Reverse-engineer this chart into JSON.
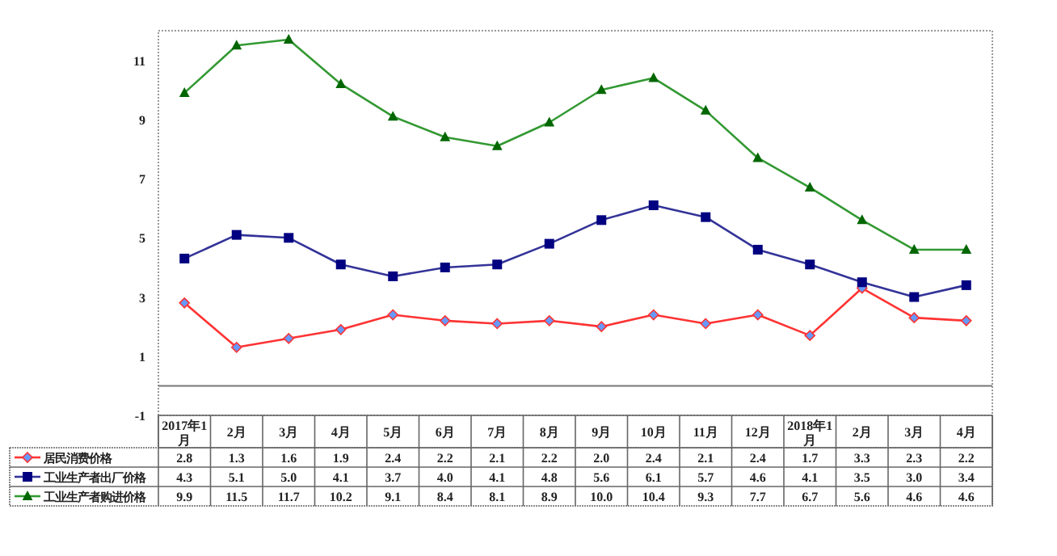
{
  "chart_data": {
    "type": "line",
    "categories": [
      "2017年1月",
      "2月",
      "3月",
      "4月",
      "5月",
      "6月",
      "7月",
      "8月",
      "9月",
      "10月",
      "11月",
      "12月",
      "2018年1月",
      "2月",
      "3月",
      "4月"
    ],
    "series": [
      {
        "name": "居民消费价格",
        "color": "#ff3333",
        "marker": "diamond",
        "values": [
          2.8,
          1.3,
          1.6,
          1.9,
          2.4,
          2.2,
          2.1,
          2.2,
          2.0,
          2.4,
          2.1,
          2.4,
          1.7,
          3.3,
          2.3,
          2.2
        ],
        "value_labels": [
          "2.8",
          "1.3",
          "1.6",
          "1.9",
          "2.4",
          "2.2",
          "2.1",
          "2.2",
          "2.0",
          "2.4",
          "2.1",
          "2.4",
          "1.7",
          "3.3",
          "2.3",
          "2.2"
        ]
      },
      {
        "name": "工业生产者出厂价格",
        "color": "#333399",
        "marker": "square",
        "values": [
          4.3,
          5.1,
          5.0,
          4.1,
          3.7,
          4.0,
          4.1,
          4.8,
          5.6,
          6.1,
          5.7,
          4.6,
          4.1,
          3.5,
          3.0,
          3.4
        ],
        "value_labels": [
          "4.3",
          "5.1",
          "5.0",
          "4.1",
          "3.7",
          "4.0",
          "4.1",
          "4.8",
          "5.6",
          "6.1",
          "5.7",
          "4.6",
          "4.1",
          "3.5",
          "3.0",
          "3.4"
        ]
      },
      {
        "name": "工业生产者购进价格",
        "color": "#339933",
        "marker": "triangle",
        "values": [
          9.9,
          11.5,
          11.7,
          10.2,
          9.1,
          8.4,
          8.1,
          8.9,
          10.0,
          10.4,
          9.3,
          7.7,
          6.7,
          5.6,
          4.6,
          4.6
        ],
        "value_labels": [
          "9.9",
          "11.5",
          "11.7",
          "10.2",
          "9.1",
          "8.4",
          "8.1",
          "8.9",
          "10.0",
          "10.4",
          "9.3",
          "7.7",
          "6.7",
          "5.6",
          "4.6",
          "4.6"
        ]
      }
    ],
    "ylim": [
      -1,
      12
    ],
    "yticks": [
      -1,
      1,
      3,
      5,
      7,
      9,
      11
    ],
    "legend": "bottom left",
    "grid": false
  }
}
